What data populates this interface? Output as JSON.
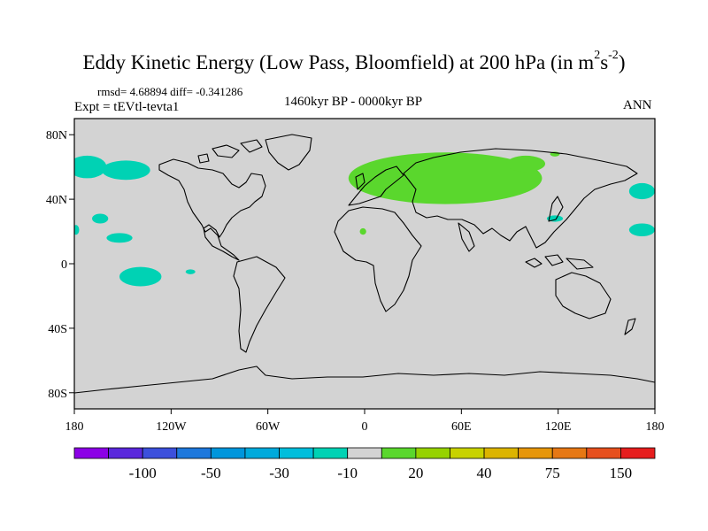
{
  "title": {
    "main": "Eddy Kinetic Energy (Low Pass, Bloomfield) at 200 hPa (in m",
    "exp1": "2",
    "mid": "s",
    "exp2": "-2",
    "close": ")"
  },
  "stats": "rmsd= 4.68894 diff= -0.341286",
  "experiment": "Expt = tEVtl-tevta1",
  "period": "1460kyr BP - 0000kyr BP",
  "season": "ANN",
  "map": {
    "projection": "cylindrical-equidistant",
    "lon_range": [
      -180,
      180
    ],
    "lat_range": [
      -90,
      90
    ],
    "background_color": "#d3d3d3",
    "x_ticks": [
      {
        "lon": -180,
        "label": "180"
      },
      {
        "lon": -120,
        "label": "120W"
      },
      {
        "lon": -60,
        "label": "60W"
      },
      {
        "lon": 0,
        "label": "0"
      },
      {
        "lon": 60,
        "label": "60E"
      },
      {
        "lon": 120,
        "label": "120E"
      },
      {
        "lon": 180,
        "label": "180"
      }
    ],
    "y_ticks": [
      {
        "lat": 80,
        "label": "80N"
      },
      {
        "lat": 40,
        "label": "40N"
      },
      {
        "lat": 0,
        "label": "0"
      },
      {
        "lat": -40,
        "label": "40S"
      },
      {
        "lat": -80,
        "label": "80S"
      }
    ],
    "anomaly_regions": [
      {
        "name": "north-pacific-west",
        "color": "#00d2b4",
        "center": [
          -172,
          60
        ],
        "radius": [
          12,
          7
        ]
      },
      {
        "name": "alaska-pacific",
        "color": "#00d2b4",
        "center": [
          -148,
          58
        ],
        "radius": [
          15,
          6
        ]
      },
      {
        "name": "north-pacific-mid",
        "color": "#00d2b4",
        "center": [
          -164,
          28
        ],
        "radius": [
          5,
          3
        ]
      },
      {
        "name": "pacific-subtropics",
        "color": "#00d2b4",
        "center": [
          -152,
          16
        ],
        "radius": [
          8,
          3
        ]
      },
      {
        "name": "hawaii-west",
        "color": "#00d2b4",
        "center": [
          -179,
          21
        ],
        "radius": [
          2,
          3
        ]
      },
      {
        "name": "tropical-east-pacific",
        "color": "#00d2b4",
        "center": [
          -139,
          -8
        ],
        "radius": [
          13,
          6
        ]
      },
      {
        "name": "peru-coast",
        "color": "#00d2b4",
        "center": [
          -108,
          -5
        ],
        "radius": [
          3,
          1.5
        ]
      },
      {
        "name": "west-pacific-north",
        "color": "#00d2b4",
        "center": [
          172,
          45
        ],
        "radius": [
          8,
          5
        ]
      },
      {
        "name": "west-pacific-subtropics",
        "color": "#00d2b4",
        "center": [
          172,
          21
        ],
        "radius": [
          8,
          4
        ]
      },
      {
        "name": "japan-east",
        "color": "#00d2b4",
        "center": [
          118,
          28
        ],
        "radius": [
          5,
          2
        ]
      },
      {
        "name": "eurasia-jet",
        "color": "#5ad72d",
        "center": [
          50,
          53
        ],
        "radius": [
          60,
          16
        ]
      },
      {
        "name": "siberia-east",
        "color": "#5ad72d",
        "center": [
          100,
          62
        ],
        "radius": [
          12,
          5
        ]
      },
      {
        "name": "west-africa",
        "color": "#5ad72d",
        "center": [
          -1,
          20
        ],
        "radius": [
          2,
          2
        ]
      },
      {
        "name": "arctic-siberia",
        "color": "#5ad72d",
        "center": [
          118,
          68
        ],
        "radius": [
          3,
          1.5
        ]
      }
    ]
  },
  "colorbar": {
    "colors": [
      "#8c00e6",
      "#5a28dc",
      "#3c50dc",
      "#1e78dc",
      "#0096dc",
      "#00aadc",
      "#00bedc",
      "#00d2b4",
      "#d3d3d3",
      "#5ad72d",
      "#96d200",
      "#c8d200",
      "#dcb400",
      "#e6960a",
      "#e67814",
      "#e6501e",
      "#e61e1e"
    ],
    "labels": [
      {
        "index": 1,
        "text": "-100"
      },
      {
        "index": 3,
        "text": "-50"
      },
      {
        "index": 5,
        "text": "-30"
      },
      {
        "index": 7,
        "text": "-10"
      },
      {
        "index": 9,
        "text": "20"
      },
      {
        "index": 11,
        "text": "40"
      },
      {
        "index": 13,
        "text": "75"
      },
      {
        "index": 15,
        "text": "150"
      }
    ]
  }
}
